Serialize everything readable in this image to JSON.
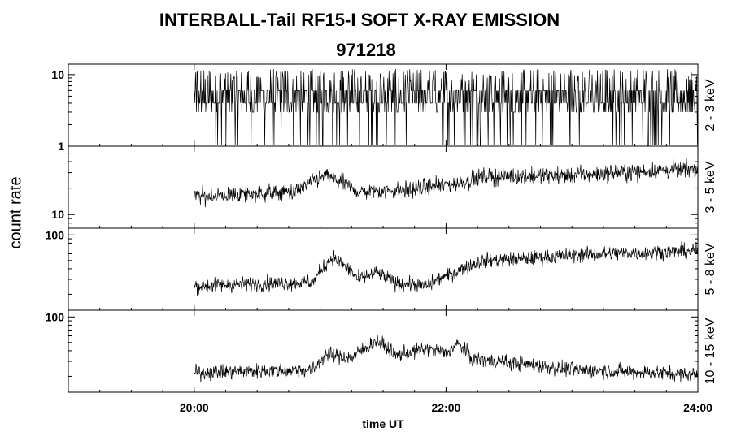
{
  "title": "INTERBALL-Tail RF15-I SOFT X-RAY EMISSION",
  "subtitle": "971218",
  "ylabel": "count rate",
  "xlabel": "time UT",
  "chart_data": {
    "type": "line",
    "x_range_hours": [
      19,
      24
    ],
    "x_ticks": [
      "20:00",
      "22:00",
      "24:00"
    ],
    "x_tick_hours": [
      20,
      22,
      24
    ],
    "data_start_hour": 20.0,
    "panels": [
      {
        "name": "2 - 3 keV",
        "scale": "log",
        "ylim": [
          1,
          14
        ],
        "y_tick_labels": [
          "1",
          "10"
        ],
        "y_tick_values": [
          1,
          10
        ],
        "segments": [
          [
            20.0,
            4
          ],
          [
            24.0,
            5
          ]
        ]
      },
      {
        "name": "3 - 5 keV",
        "scale": "log",
        "ylim": [
          7,
          60
        ],
        "y_tick_labels": [
          "10"
        ],
        "y_tick_values": [
          10
        ],
        "segments": [
          [
            20.0,
            16
          ],
          [
            20.8,
            18
          ],
          [
            21.05,
            28
          ],
          [
            21.3,
            18
          ],
          [
            21.7,
            19
          ],
          [
            22.1,
            23
          ],
          [
            22.3,
            27
          ],
          [
            23.0,
            28
          ],
          [
            24.0,
            33
          ]
        ]
      },
      {
        "name": "5 - 8 keV",
        "scale": "log",
        "ylim": [
          13,
          120
        ],
        "y_tick_labels": [
          "100"
        ],
        "y_tick_values": [
          100
        ],
        "segments": [
          [
            20.0,
            25
          ],
          [
            20.95,
            28
          ],
          [
            21.1,
            55
          ],
          [
            21.3,
            30
          ],
          [
            21.45,
            36
          ],
          [
            21.6,
            27
          ],
          [
            21.85,
            25
          ],
          [
            22.1,
            38
          ],
          [
            22.3,
            50
          ],
          [
            22.6,
            52
          ],
          [
            23.0,
            58
          ],
          [
            24.0,
            65
          ]
        ]
      },
      {
        "name": "10 - 15 keV",
        "scale": "log",
        "ylim": [
          13,
          120
        ],
        "y_tick_labels": [
          "100"
        ],
        "y_tick_values": [
          100
        ],
        "segments": [
          [
            20.0,
            22
          ],
          [
            20.95,
            24
          ],
          [
            21.05,
            36
          ],
          [
            21.25,
            33
          ],
          [
            21.45,
            52
          ],
          [
            21.6,
            35
          ],
          [
            21.85,
            42
          ],
          [
            22.0,
            38
          ],
          [
            22.1,
            48
          ],
          [
            22.2,
            32
          ],
          [
            22.4,
            30
          ],
          [
            23.0,
            24
          ],
          [
            24.0,
            21
          ]
        ]
      }
    ]
  }
}
